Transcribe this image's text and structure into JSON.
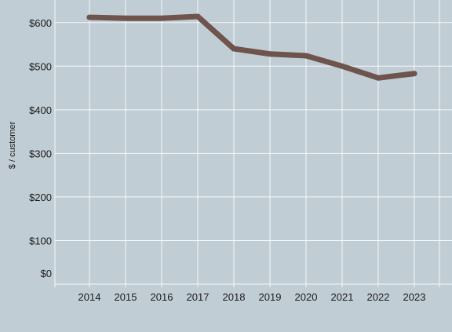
{
  "chart_data": {
    "type": "line",
    "title": "",
    "xlabel": "",
    "ylabel": "$ / customer",
    "categories": [
      "2014",
      "2015",
      "2016",
      "2017",
      "2018",
      "2019",
      "2020",
      "2021",
      "2022",
      "2023"
    ],
    "series": [
      {
        "values": [
          612,
          610,
          610,
          614,
          540,
          528,
          524,
          500,
          473,
          483
        ]
      }
    ],
    "y_ticks": [
      "$0",
      "$100",
      "$200",
      "$300",
      "$400",
      "$500",
      "$600"
    ],
    "ylim": [
      0,
      650
    ],
    "grid": true,
    "legend": "none",
    "colors": {
      "background": "#c1cdd4",
      "line": "#6e544d",
      "grid": "#ffffff"
    }
  }
}
